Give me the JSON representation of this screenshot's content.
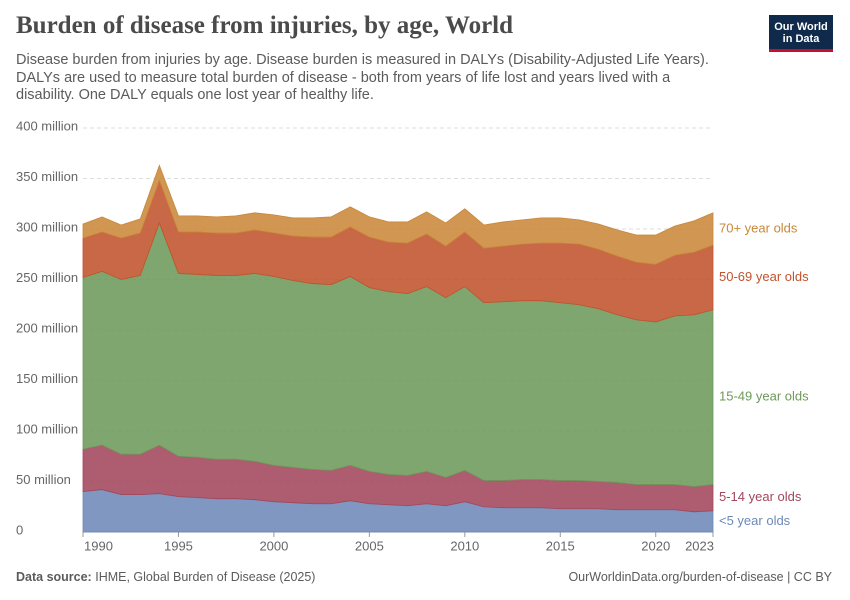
{
  "chart_data": {
    "type": "stacked-area",
    "title": "Burden of disease from injuries, by age, World",
    "subtitle": "Disease burden from injuries by age. Disease burden is measured in DALYs (Disability-Adjusted Life Years). DALYs are used to measure total burden of disease - both from years of life lost and years lived with a disability. One DALY equals one lost year of healthy life.",
    "logo": [
      "Our World",
      "in Data"
    ],
    "source_label": "Data source:",
    "source": "IHME, Global Burden of Disease (2025)",
    "url": "OurWorldinData.org/burden-of-disease | CC BY",
    "x": [
      1990,
      1991,
      1992,
      1993,
      1994,
      1995,
      1996,
      1997,
      1998,
      1999,
      2000,
      2001,
      2002,
      2003,
      2004,
      2005,
      2006,
      2007,
      2008,
      2009,
      2010,
      2011,
      2012,
      2013,
      2014,
      2015,
      2016,
      2017,
      2018,
      2019,
      2020,
      2021,
      2022,
      2023
    ],
    "xlim": [
      1990,
      2023
    ],
    "xticks": [
      1990,
      1995,
      2000,
      2005,
      2010,
      2015,
      2020,
      2023
    ],
    "ylim": [
      0,
      400
    ],
    "yticks": [
      {
        "value": 0,
        "label": "0"
      },
      {
        "value": 50,
        "label": "50 million"
      },
      {
        "value": 100,
        "label": "100 million"
      },
      {
        "value": 150,
        "label": "150 million"
      },
      {
        "value": 200,
        "label": "200 million"
      },
      {
        "value": 250,
        "label": "250 million"
      },
      {
        "value": 300,
        "label": "300 million"
      },
      {
        "value": 350,
        "label": "350 million"
      },
      {
        "value": 400,
        "label": "400 million"
      }
    ],
    "grid": true,
    "series": [
      {
        "name": "<5 year olds",
        "color": "#6d89b8",
        "values": [
          40,
          42,
          37,
          37,
          38,
          35,
          34,
          33,
          33,
          32,
          30,
          29,
          28,
          28,
          31,
          28,
          27,
          26,
          28,
          26,
          30,
          25,
          24,
          24,
          24,
          23,
          23,
          23,
          22,
          22,
          22,
          22,
          20,
          21
        ]
      },
      {
        "name": "5-14 year olds",
        "color": "#a3475c",
        "values": [
          42,
          44,
          40,
          40,
          48,
          40,
          40,
          39,
          39,
          38,
          36,
          35,
          34,
          33,
          35,
          32,
          30,
          30,
          32,
          28,
          31,
          26,
          27,
          28,
          28,
          28,
          28,
          27,
          27,
          25,
          25,
          25,
          25,
          26
        ]
      },
      {
        "name": "15-49 year olds",
        "color": "#6e9a5b",
        "values": [
          170,
          172,
          173,
          177,
          220,
          181,
          181,
          182,
          182,
          186,
          187,
          185,
          184,
          184,
          187,
          182,
          181,
          180,
          183,
          178,
          182,
          176,
          177,
          177,
          177,
          176,
          174,
          171,
          166,
          163,
          161,
          167,
          170,
          173
        ]
      },
      {
        "name": "50-69 year olds",
        "color": "#c2532e",
        "values": [
          39,
          39,
          41,
          42,
          42,
          41,
          42,
          42,
          42,
          43,
          43,
          44,
          46,
          47,
          49,
          50,
          49,
          50,
          52,
          51,
          54,
          54,
          55,
          56,
          57,
          59,
          60,
          59,
          58,
          57,
          57,
          60,
          62,
          64
        ]
      },
      {
        "name": "70+ year olds",
        "color": "#c9873a",
        "values": [
          14,
          15,
          13,
          14,
          15,
          16,
          16,
          16,
          17,
          17,
          18,
          18,
          19,
          20,
          20,
          20,
          20,
          21,
          22,
          23,
          23,
          23,
          24,
          24,
          25,
          25,
          24,
          25,
          26,
          27,
          29,
          29,
          31,
          32
        ]
      }
    ]
  }
}
